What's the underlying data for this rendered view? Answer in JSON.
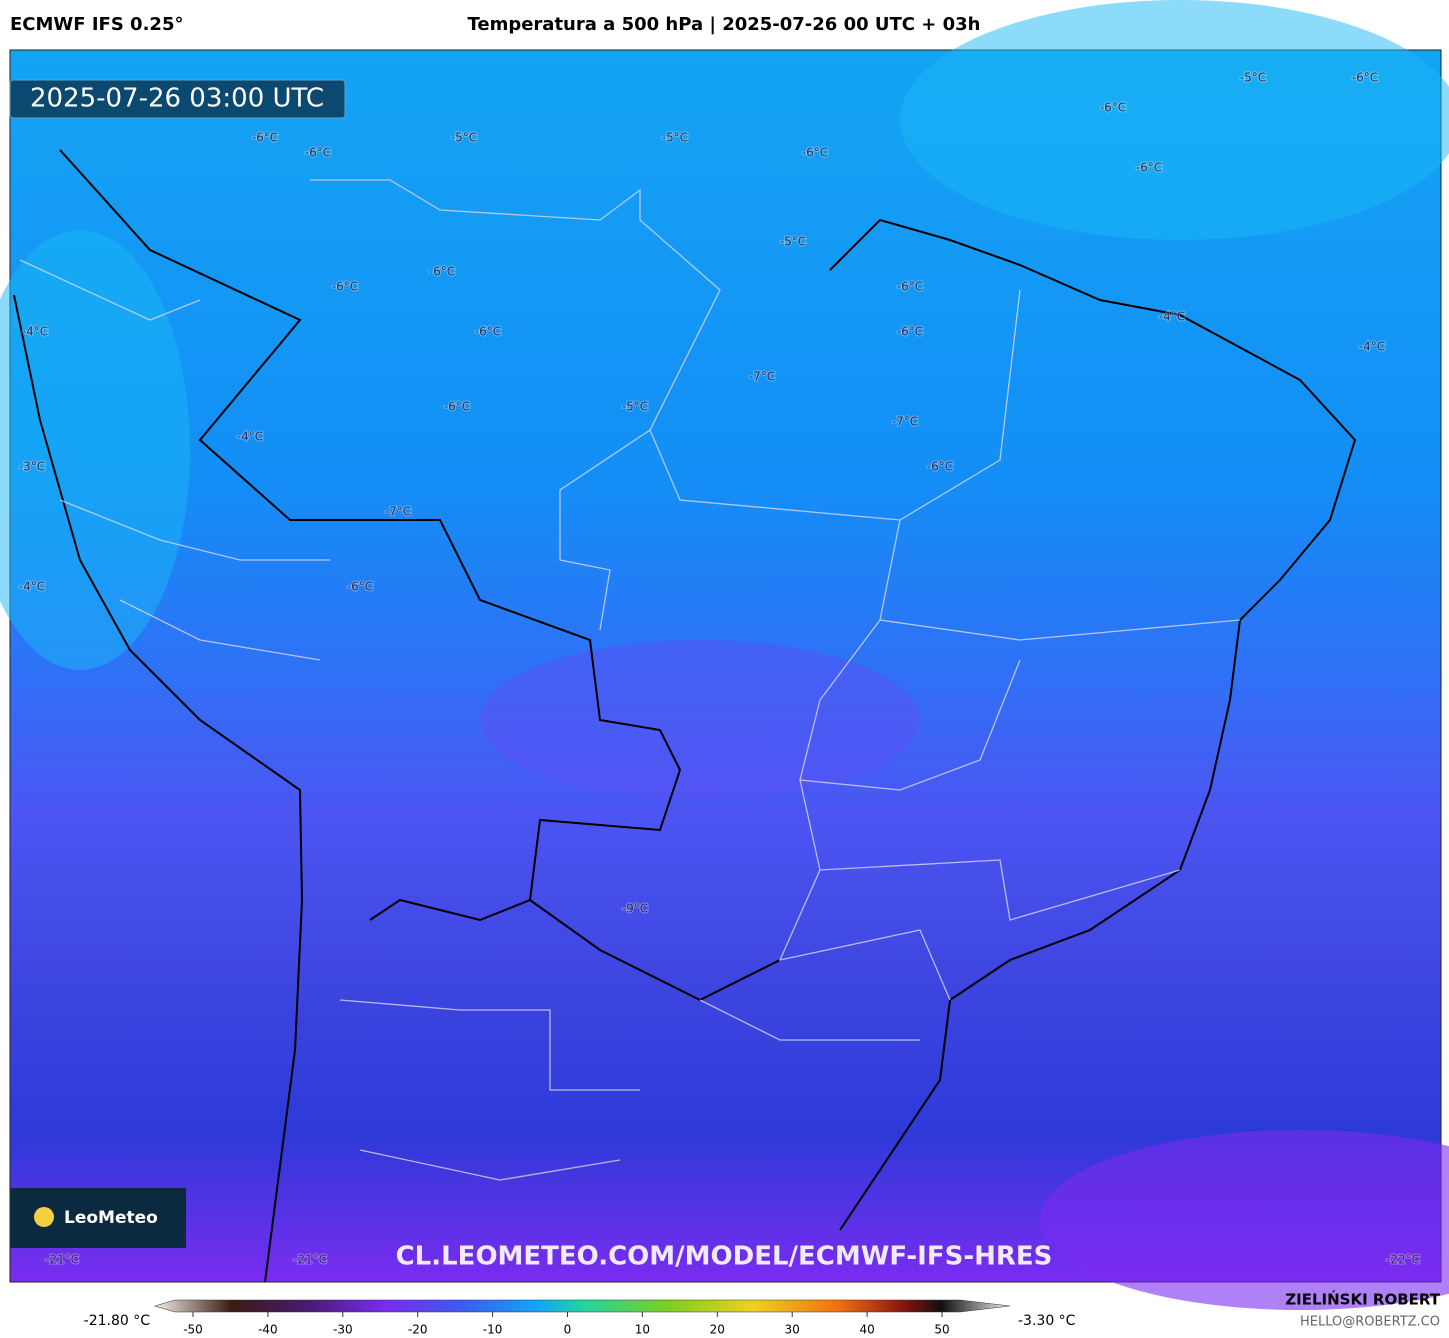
{
  "header": {
    "model": "ECMWF IFS 0.25°",
    "title": "Temperatura a 500 hPa | 2025-07-26 00 UTC + 03h"
  },
  "map": {
    "timestamp": "2025-07-26 03:00 UTC",
    "watermark": "CL.LEOMETEO.COM/MODEL/ECMWF-IFS-HRES",
    "logo": "LeoMeteo",
    "contour_labels": [
      "-5°C",
      "-6°C",
      "-6°C",
      "-6°C",
      "-5°C",
      "-5°C",
      "-6°C",
      "-6°C",
      "-6°C",
      "-5°C",
      "-6°C",
      "-6°C",
      "-6°C",
      "-6°C",
      "-6°C",
      "-4°C",
      "-4°C",
      "-4°C",
      "-7°C",
      "-6°C",
      "-5°C",
      "-7°C",
      "-4°C",
      "-3°C",
      "-6°C",
      "-7°C",
      "-6°C",
      "-4°C",
      "-9°C",
      "-21°C",
      "-21°C",
      "-22°C"
    ]
  },
  "colorbar": {
    "min_label": "-21.80 °C",
    "max_label": "-3.30 °C",
    "ticks": [
      -50,
      -40,
      -30,
      -20,
      -10,
      0,
      10,
      20,
      30,
      40,
      50
    ]
  },
  "footer": {
    "author": "ZIELIŃSKI ROBERT",
    "contact": "HELLO@ROBERTZ.CO"
  }
}
